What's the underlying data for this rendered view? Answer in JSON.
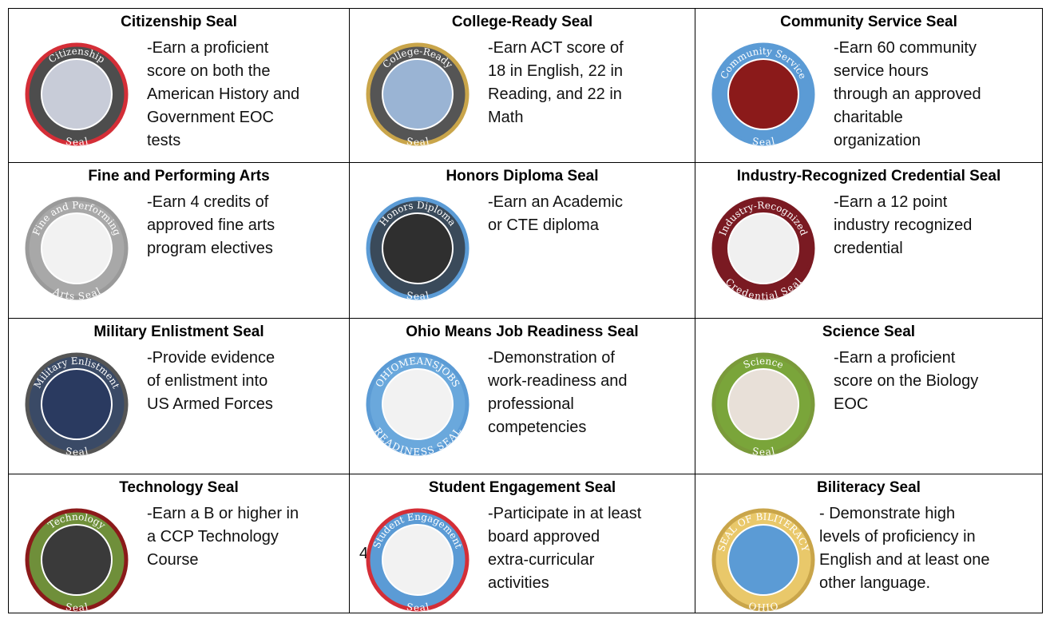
{
  "cells": [
    {
      "title": "Citizenship Seal",
      "badge": {
        "top": "Citizenship",
        "bottom": "Seal"
      },
      "description": [
        "-Earn a proficient",
        "score on both the",
        "American History and",
        "Government EOC",
        "tests"
      ]
    },
    {
      "title": "College-Ready Seal",
      "badge": {
        "top": "College-Ready",
        "bottom": "Seal"
      },
      "description": [
        "-Earn ACT score of",
        "18 in English, 22 in",
        "Reading, and 22 in",
        "Math"
      ]
    },
    {
      "title": "Community Service Seal",
      "badge": {
        "top": "Community Service",
        "bottom": "Seal"
      },
      "description": [
        "-Earn 60 community",
        "service hours",
        "through an approved",
        "charitable",
        "organization"
      ]
    },
    {
      "title": "Fine and Performing Arts",
      "badge": {
        "top": "Fine and Performing",
        "bottom": "Arts Seal"
      },
      "description": [
        "-Earn 4 credits of",
        "approved fine arts",
        "program electives"
      ]
    },
    {
      "title": "Honors Diploma Seal",
      "badge": {
        "top": "Honors Diploma",
        "bottom": "Seal"
      },
      "description": [
        "-Earn an Academic",
        "or CTE diploma"
      ]
    },
    {
      "title": "Industry-Recognized Credential Seal",
      "badge": {
        "top": "Industry-Recognized",
        "bottom": "Credential Seal"
      },
      "description": [
        "-Earn a 12 point",
        "industry recognized",
        "credential"
      ]
    },
    {
      "title": "Military Enlistment Seal",
      "badge": {
        "top": "Military Enlistment",
        "bottom": "Seal"
      },
      "description": [
        "-Provide evidence",
        "of enlistment into",
        "US Armed Forces"
      ]
    },
    {
      "title": "Ohio Means Job Readiness Seal",
      "badge": {
        "top": "OHIOMEANSJOBS",
        "bottom": "READINESS SEAL"
      },
      "description": [
        "-Demonstration of",
        "work-readiness and",
        "professional",
        "competencies"
      ]
    },
    {
      "title": "Science Seal",
      "badge": {
        "top": "Science",
        "bottom": "Seal"
      },
      "description": [
        "-Earn a proficient",
        "score on the Biology",
        "EOC"
      ]
    },
    {
      "title": "Technology Seal",
      "badge": {
        "top": "Technology",
        "bottom": "Seal"
      },
      "description": [
        "-Earn a B or higher in",
        "a CCP Technology",
        "Course"
      ]
    },
    {
      "title": "Student Engagement Seal",
      "prefix": "4",
      "badge": {
        "top": "Student Engagement",
        "bottom": "Seal"
      },
      "description": [
        "-Participate in at least",
        "board approved",
        "extra-curricular",
        "activities"
      ]
    },
    {
      "title": "Biliteracy Seal",
      "badge": {
        "top": "SEAL OF BILITERACY",
        "bottom": "OHIO"
      },
      "description": [
        "- Demonstrate high",
        "levels of proficiency in",
        "English and at least one",
        "other language."
      ]
    }
  ]
}
